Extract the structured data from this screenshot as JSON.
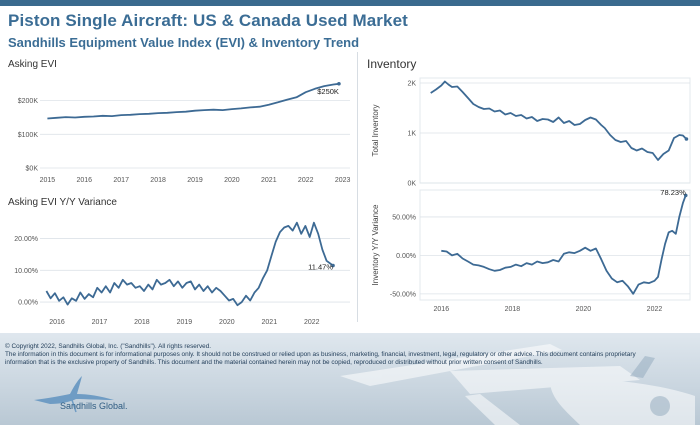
{
  "header": {
    "title": "Piston Single Aircraft:  US & Canada Used Market",
    "subtitle": "Sandhills Equipment Value Index (EVI) & Inventory Trend",
    "inventory_title": "Inventory"
  },
  "colors": {
    "line": "#3d6a94",
    "title": "#3b6d95",
    "grid": "#dde3e8"
  },
  "chart_data": [
    {
      "id": "asking-evi",
      "type": "line",
      "title": "Asking EVI",
      "xlabel": "",
      "ylabel": "",
      "xlim": [
        2014.8,
        2023.2
      ],
      "ylim": [
        0,
        285000
      ],
      "y_ticks": [
        {
          "v": 0,
          "label": "$0K"
        },
        {
          "v": 100000,
          "label": "$100K"
        },
        {
          "v": 200000,
          "label": "$200K"
        }
      ],
      "x_ticks": [
        {
          "v": 2015,
          "label": "2015"
        },
        {
          "v": 2016,
          "label": "2016"
        },
        {
          "v": 2017,
          "label": "2017"
        },
        {
          "v": 2018,
          "label": "2018"
        },
        {
          "v": 2019,
          "label": "2019"
        },
        {
          "v": 2020,
          "label": "2020"
        },
        {
          "v": 2021,
          "label": "2021"
        },
        {
          "v": 2022,
          "label": "2022"
        },
        {
          "v": 2023,
          "label": "2023"
        }
      ],
      "data_label": {
        "x": 2022.9,
        "y": 250000,
        "text": "$250K"
      },
      "grid": true,
      "x": [
        2015.0,
        2015.25,
        2015.5,
        2015.75,
        2016.0,
        2016.25,
        2016.5,
        2016.75,
        2017.0,
        2017.25,
        2017.5,
        2017.75,
        2018.0,
        2018.25,
        2018.5,
        2018.75,
        2019.0,
        2019.25,
        2019.5,
        2019.75,
        2020.0,
        2020.25,
        2020.5,
        2020.75,
        2021.0,
        2021.25,
        2021.5,
        2021.75,
        2022.0,
        2022.25,
        2022.5,
        2022.75,
        2022.9
      ],
      "y": [
        147000,
        149000,
        151000,
        150000,
        152000,
        153000,
        155000,
        154000,
        157000,
        158000,
        160000,
        161000,
        163000,
        164000,
        166000,
        167000,
        170000,
        172000,
        173000,
        172000,
        175000,
        177000,
        180000,
        182000,
        188000,
        195000,
        203000,
        210000,
        225000,
        235000,
        243000,
        248000,
        250000
      ]
    },
    {
      "id": "asking-evi-yoy",
      "type": "line",
      "title": "Asking EVI Y/Y Variance",
      "xlabel": "",
      "ylabel": "",
      "xlim": [
        2015.6,
        2022.9
      ],
      "ylim": [
        -0.025,
        0.29
      ],
      "y_ticks": [
        {
          "v": 0,
          "label": "0.00%"
        },
        {
          "v": 0.1,
          "label": "10.00%"
        },
        {
          "v": 0.2,
          "label": "20.00%"
        }
      ],
      "x_ticks": [
        {
          "v": 2016,
          "label": "2016"
        },
        {
          "v": 2017,
          "label": "2017"
        },
        {
          "v": 2018,
          "label": "2018"
        },
        {
          "v": 2019,
          "label": "2019"
        },
        {
          "v": 2020,
          "label": "2020"
        },
        {
          "v": 2021,
          "label": "2021"
        },
        {
          "v": 2022,
          "label": "2022"
        }
      ],
      "data_label": {
        "x": 2022.5,
        "y": 0.1347,
        "text": "11.47%"
      },
      "grid": true,
      "x": [
        2015.75,
        2015.85,
        2015.95,
        2016.05,
        2016.15,
        2016.25,
        2016.35,
        2016.45,
        2016.55,
        2016.65,
        2016.75,
        2016.85,
        2016.95,
        2017.05,
        2017.15,
        2017.25,
        2017.35,
        2017.45,
        2017.55,
        2017.65,
        2017.75,
        2017.85,
        2017.95,
        2018.05,
        2018.15,
        2018.25,
        2018.35,
        2018.45,
        2018.55,
        2018.65,
        2018.75,
        2018.85,
        2018.95,
        2019.05,
        2019.15,
        2019.25,
        2019.35,
        2019.45,
        2019.55,
        2019.65,
        2019.75,
        2019.85,
        2019.95,
        2020.05,
        2020.15,
        2020.25,
        2020.35,
        2020.45,
        2020.55,
        2020.65,
        2020.75,
        2020.85,
        2020.95,
        2021.05,
        2021.15,
        2021.25,
        2021.35,
        2021.45,
        2021.55,
        2021.65,
        2021.75,
        2021.85,
        2021.95,
        2022.05,
        2022.15,
        2022.25,
        2022.35,
        2022.45,
        2022.5
      ],
      "y": [
        0.035,
        0.012,
        0.028,
        0.004,
        0.015,
        -0.008,
        0.012,
        0.004,
        0.03,
        0.01,
        0.025,
        0.015,
        0.045,
        0.03,
        0.05,
        0.03,
        0.06,
        0.045,
        0.07,
        0.055,
        0.06,
        0.045,
        0.05,
        0.035,
        0.055,
        0.04,
        0.07,
        0.055,
        0.06,
        0.07,
        0.05,
        0.065,
        0.045,
        0.06,
        0.065,
        0.04,
        0.055,
        0.035,
        0.05,
        0.03,
        0.045,
        0.035,
        0.02,
        0.005,
        0.01,
        -0.01,
        0.0,
        0.02,
        0.005,
        0.03,
        0.045,
        0.075,
        0.1,
        0.145,
        0.19,
        0.22,
        0.235,
        0.24,
        0.225,
        0.25,
        0.215,
        0.24,
        0.205,
        0.25,
        0.215,
        0.165,
        0.13,
        0.12,
        0.115
      ]
    },
    {
      "id": "inventory",
      "type": "line",
      "title": "",
      "xlabel": "",
      "ylabel": "Total Inventory",
      "xlim": [
        2015.4,
        2023.0
      ],
      "ylim": [
        0,
        2100
      ],
      "y_ticks": [
        {
          "v": 0,
          "label": "0K"
        },
        {
          "v": 1000,
          "label": "1K"
        },
        {
          "v": 2000,
          "label": "2K"
        }
      ],
      "grid": true,
      "x": [
        2015.7,
        2015.85,
        2016.0,
        2016.1,
        2016.2,
        2016.3,
        2016.45,
        2016.6,
        2016.75,
        2016.9,
        2017.05,
        2017.2,
        2017.35,
        2017.5,
        2017.65,
        2017.8,
        2017.95,
        2018.1,
        2018.25,
        2018.4,
        2018.55,
        2018.7,
        2018.85,
        2019.0,
        2019.15,
        2019.3,
        2019.45,
        2019.6,
        2019.75,
        2019.9,
        2020.05,
        2020.2,
        2020.35,
        2020.5,
        2020.6,
        2020.75,
        2020.9,
        2021.05,
        2021.2,
        2021.35,
        2021.5,
        2021.65,
        2021.8,
        2021.95,
        2022.1,
        2022.25,
        2022.4,
        2022.55,
        2022.7,
        2022.8,
        2022.9
      ],
      "y": [
        1800,
        1870,
        1950,
        2030,
        1970,
        1920,
        1930,
        1820,
        1700,
        1580,
        1520,
        1480,
        1490,
        1430,
        1450,
        1370,
        1400,
        1340,
        1360,
        1290,
        1320,
        1240,
        1280,
        1270,
        1220,
        1310,
        1200,
        1240,
        1160,
        1180,
        1260,
        1310,
        1270,
        1160,
        1100,
        960,
        860,
        820,
        840,
        700,
        650,
        690,
        620,
        600,
        460,
        580,
        650,
        900,
        960,
        950,
        880
      ]
    },
    {
      "id": "inventory-yoy",
      "type": "line",
      "title": "",
      "xlabel": "",
      "ylabel": "Inventory Y/Y Variance",
      "xlim": [
        2015.4,
        2023.0
      ],
      "ylim": [
        -0.58,
        0.85
      ],
      "y_ticks": [
        {
          "v": -0.5,
          "label": "-50.00%"
        },
        {
          "v": 0,
          "label": "0.00%"
        },
        {
          "v": 0.5,
          "label": "50.00%"
        }
      ],
      "x_ticks": [
        {
          "v": 2016,
          "label": "2016"
        },
        {
          "v": 2018,
          "label": "2018"
        },
        {
          "v": 2020,
          "label": "2020"
        },
        {
          "v": 2022,
          "label": "2022"
        }
      ],
      "data_label": {
        "x": 2022.88,
        "y": 0.7823,
        "text": "78.23%"
      },
      "grid": true,
      "x": [
        2016.0,
        2016.15,
        2016.3,
        2016.45,
        2016.6,
        2016.75,
        2016.9,
        2017.05,
        2017.2,
        2017.35,
        2017.5,
        2017.65,
        2017.8,
        2017.95,
        2018.1,
        2018.25,
        2018.4,
        2018.55,
        2018.7,
        2018.85,
        2019.0,
        2019.15,
        2019.3,
        2019.45,
        2019.6,
        2019.75,
        2019.9,
        2020.05,
        2020.2,
        2020.35,
        2020.5,
        2020.65,
        2020.8,
        2020.95,
        2021.1,
        2021.25,
        2021.4,
        2021.55,
        2021.7,
        2021.85,
        2022.0,
        2022.1,
        2022.2,
        2022.3,
        2022.4,
        2022.5,
        2022.6,
        2022.7,
        2022.8,
        2022.88
      ],
      "y": [
        0.06,
        0.05,
        0.0,
        0.02,
        -0.04,
        -0.08,
        -0.12,
        -0.13,
        -0.15,
        -0.18,
        -0.2,
        -0.19,
        -0.16,
        -0.15,
        -0.12,
        -0.14,
        -0.1,
        -0.12,
        -0.08,
        -0.1,
        -0.09,
        -0.06,
        -0.08,
        0.02,
        0.04,
        0.03,
        0.06,
        0.1,
        0.06,
        0.09,
        -0.05,
        -0.2,
        -0.3,
        -0.35,
        -0.33,
        -0.4,
        -0.5,
        -0.38,
        -0.35,
        -0.36,
        -0.33,
        -0.28,
        -0.05,
        0.15,
        0.3,
        0.32,
        0.28,
        0.5,
        0.68,
        0.78
      ]
    }
  ],
  "footer": {
    "line1": "© Copyright 2022, Sandhills Global, Inc. (\"Sandhills\"). All rights reserved.",
    "line2": "The information in this document is for informational purposes only.  It should not be construed or relied upon as business, marketing, financial, investment, legal, regulatory or other advice. This document contains proprietary",
    "line3": "information that is the exclusive property of Sandhills. This document and the material contained herein may not be copied, reproduced or distributed without prior written consent of Sandhills.",
    "logo_text": "Sandhills Global."
  }
}
